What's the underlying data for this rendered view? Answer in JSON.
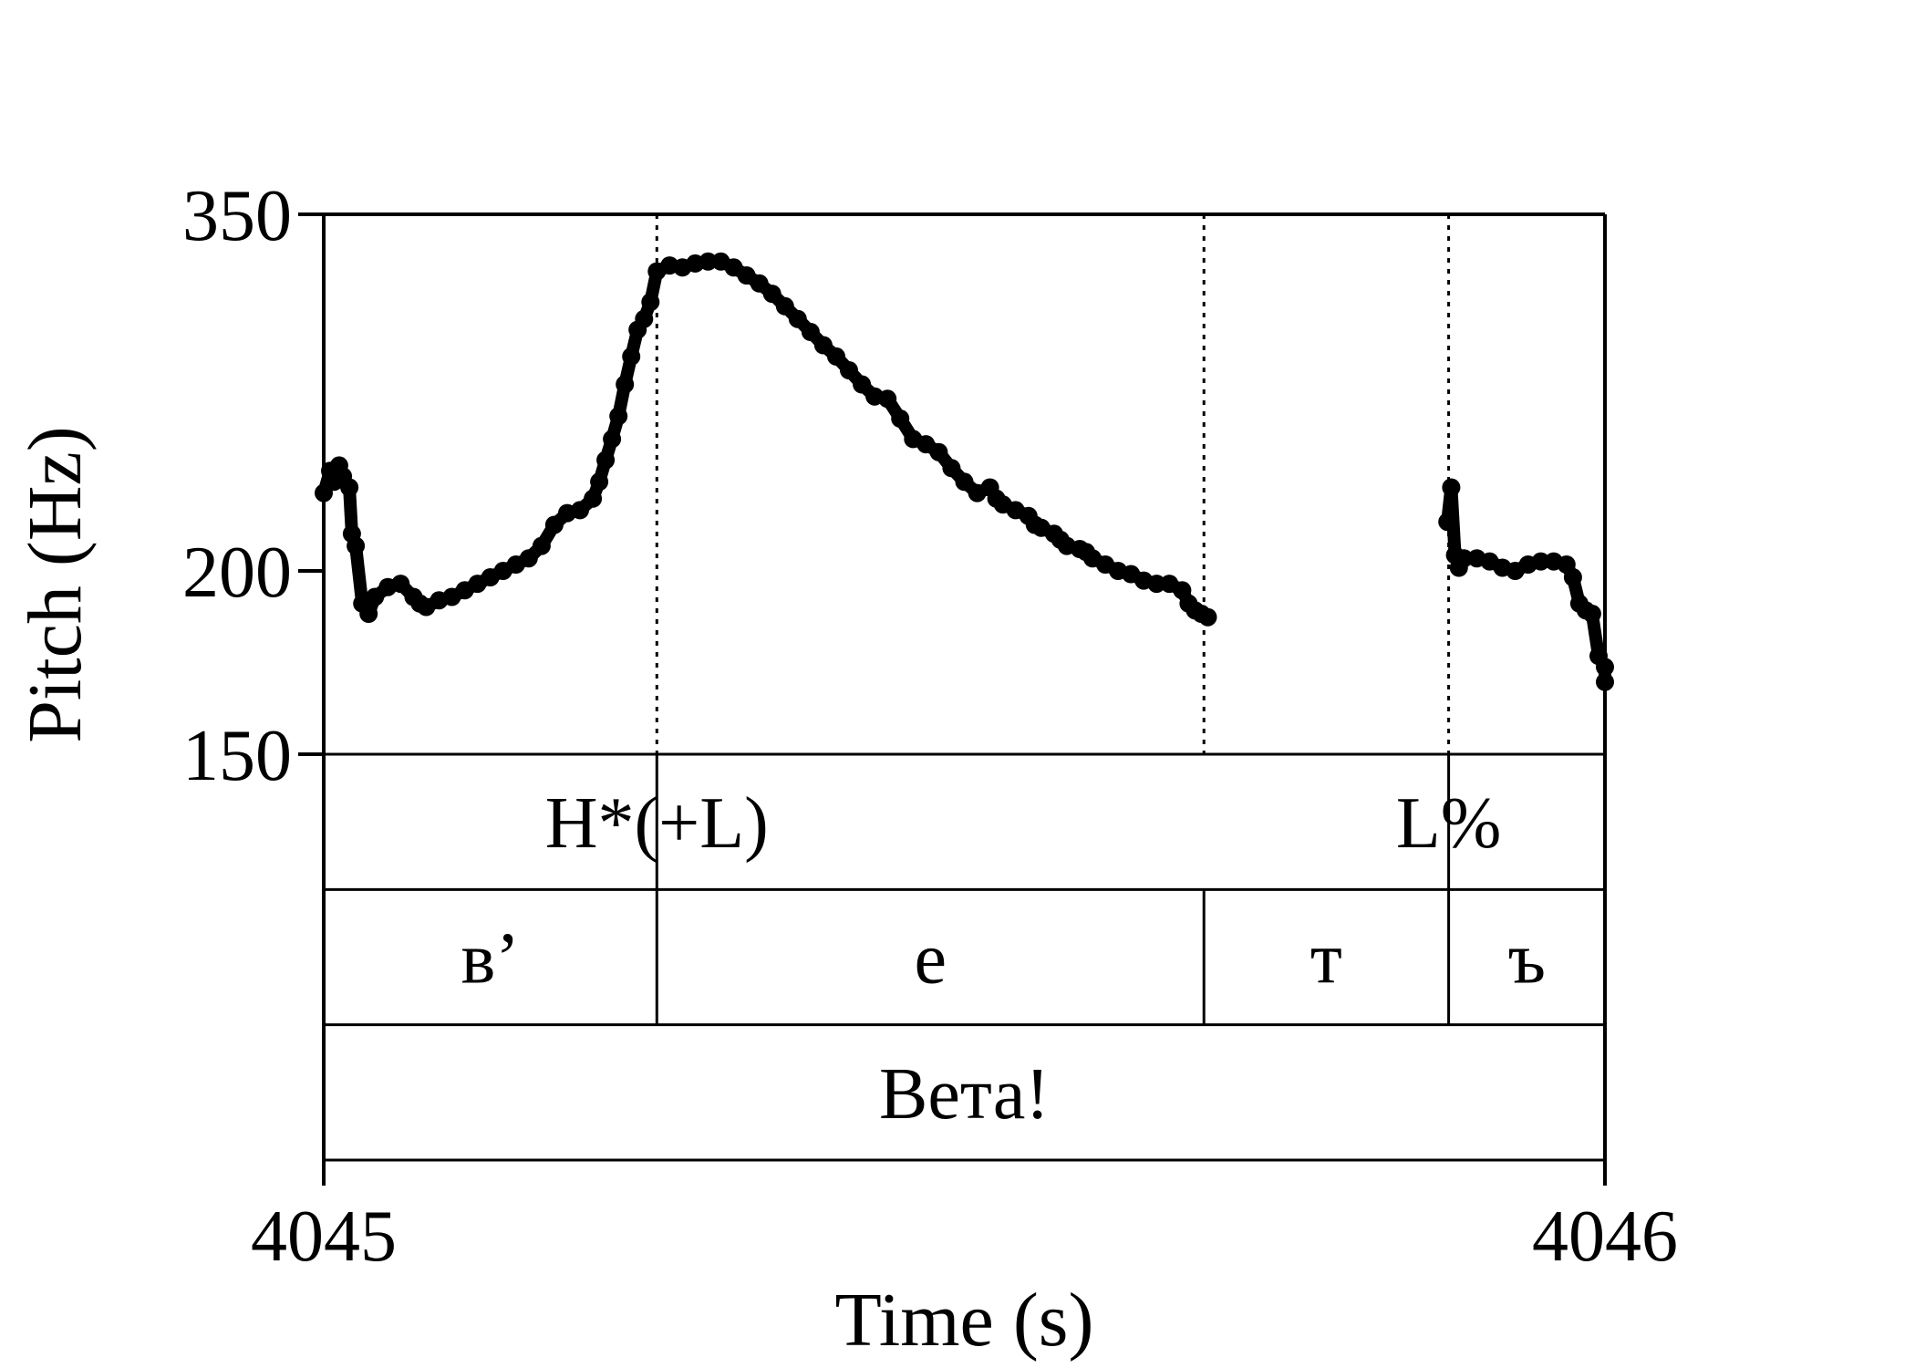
{
  "chart_data": {
    "type": "scatter",
    "xlabel": "Time (s)",
    "ylabel": "Pitch (Hz)",
    "xlim": [
      4045,
      4046
    ],
    "ylim": [
      150,
      350
    ],
    "y_scale": "log",
    "xticks": [
      "4045",
      "4046"
    ],
    "yticks": [
      "350",
      "200",
      "150"
    ],
    "grid": false,
    "marker_color": "#000000",
    "boundaries": [
      4045.26,
      4045.687,
      4045.878
    ],
    "series": [
      {
        "segments": [
          {
            "x": [
              4045.0,
              4045.005,
              4045.008,
              4045.012,
              4045.015,
              4045.02,
              4045.022,
              4045.025,
              4045.03,
              4045.035,
              4045.04,
              4045.05,
              4045.06,
              4045.07,
              4045.075,
              4045.08,
              4045.09,
              4045.1,
              4045.11,
              4045.12,
              4045.13,
              4045.14,
              4045.15,
              4045.16,
              4045.17,
              4045.18,
              4045.19,
              4045.2,
              4045.21,
              4045.215,
              4045.22,
              4045.225,
              4045.23,
              4045.235,
              4045.24,
              4045.245,
              4045.25,
              4045.255,
              4045.26,
              4045.27,
              4045.28,
              4045.29,
              4045.3,
              4045.31,
              4045.32,
              4045.33,
              4045.34,
              4045.35,
              4045.36,
              4045.37,
              4045.38,
              4045.39,
              4045.4,
              4045.41,
              4045.42,
              4045.43,
              4045.44,
              4045.45,
              4045.46,
              4045.47,
              4045.48,
              4045.49,
              4045.5,
              4045.51,
              4045.52,
              4045.525,
              4045.53,
              4045.54,
              4045.55,
              4045.555,
              4045.56,
              4045.57,
              4045.575,
              4045.58,
              4045.59,
              4045.595,
              4045.6,
              4045.61,
              4045.62,
              4045.63,
              4045.64,
              4045.65,
              4045.66,
              4045.67,
              4045.675,
              4045.68,
              4045.685,
              4045.69
            ],
            "y": [
              226,
              234,
              230,
              236,
              232,
              228,
              212,
              208,
              190,
              187,
              192,
              195,
              196,
              192,
              190,
              189,
              191,
              192,
              194,
              196,
              198,
              200,
              202,
              204,
              208,
              215,
              219,
              220,
              224,
              230,
              238,
              246,
              255,
              268,
              280,
              292,
              297,
              305,
              320,
              323,
              322,
              324,
              325,
              325,
              322,
              318,
              314,
              309,
              303,
              297,
              291,
              285,
              280,
              274,
              268,
              263,
              262,
              254,
              246,
              244,
              241,
              235,
              230,
              226,
              228,
              224,
              222,
              220,
              218,
              215,
              214,
              212,
              210,
              208,
              207,
              206,
              204,
              202,
              200,
              199,
              197,
              196,
              196,
              194,
              190,
              188,
              187,
              186
            ]
          },
          {
            "x": [
              4045.877,
              4045.88,
              4045.883,
              4045.886,
              4045.89,
              4045.9,
              4045.91,
              4045.92,
              4045.93,
              4045.94,
              4045.95,
              4045.96,
              4045.97,
              4045.975,
              4045.98,
              4045.985,
              4045.99,
              4045.995,
              4046.0,
              4046.0
            ],
            "y": [
              216,
              228,
              205,
              201,
              204,
              204,
              203,
              201,
              200,
              202,
              203,
              203,
              202,
              198,
              190,
              188,
              187,
              175,
              172,
              168
            ]
          }
        ]
      }
    ],
    "tiers": [
      {
        "labels": [
          {
            "text": "H*(+L)",
            "x": 4045.26
          },
          {
            "text": "L%",
            "x": 4045.878
          }
        ]
      },
      {
        "intervals": [
          {
            "text": "в’",
            "start": 4045.0,
            "end": 4045.26
          },
          {
            "text": "е",
            "start": 4045.26,
            "end": 4045.687
          },
          {
            "text": "т",
            "start": 4045.687,
            "end": 4045.878
          },
          {
            "text": "ъ",
            "start": 4045.878,
            "end": 4046.0
          }
        ]
      },
      {
        "intervals": [
          {
            "text": "Вета!",
            "start": 4045.0,
            "end": 4046.0
          }
        ]
      }
    ]
  }
}
